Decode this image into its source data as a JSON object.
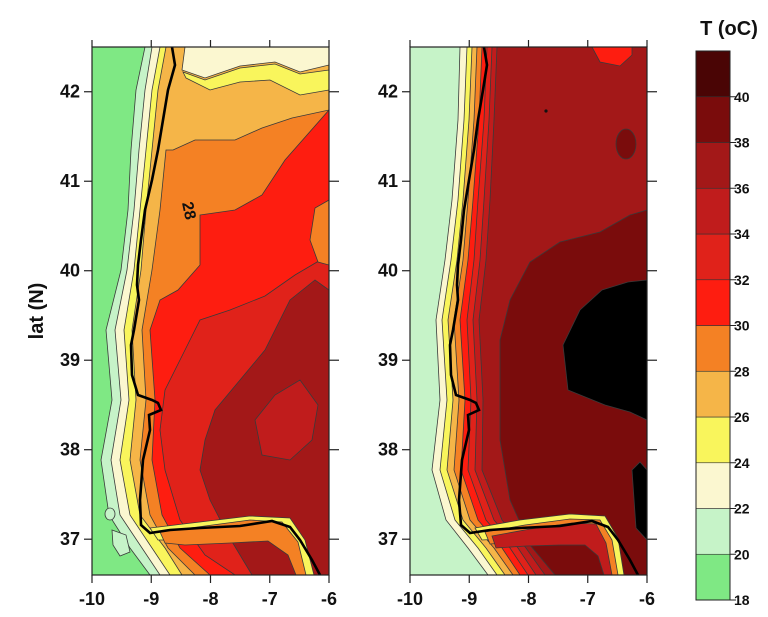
{
  "chart_data": {
    "type": "heatmap",
    "ylabel": "lat (N)",
    "colorbar": {
      "title": "T (oC)",
      "ticks": [
        18,
        20,
        22,
        24,
        26,
        28,
        30,
        32,
        34,
        36,
        38,
        40
      ],
      "range": [
        18,
        42
      ],
      "colors": [
        "#7fe884",
        "#c6f3c8",
        "#fbf7d0",
        "#f9f55c",
        "#f5b548",
        "#f48124",
        "#fe1d10",
        "#e0221a",
        "#c01c1c",
        "#a31818",
        "#7a0c0c",
        "#4a0505",
        "#000000"
      ]
    },
    "panels": [
      {
        "name": "left",
        "xlim": [
          -10,
          -6
        ],
        "ylim": [
          36.6,
          42.5
        ],
        "xticks": [
          -10,
          -9,
          -8,
          -7,
          -6
        ],
        "yticks": [
          37,
          38,
          39,
          40,
          41,
          42
        ],
        "contour_label": "28"
      },
      {
        "name": "right",
        "xlim": [
          -10,
          -6
        ],
        "ylim": [
          36.6,
          42.5
        ],
        "xticks": [
          -10,
          -9,
          -8,
          -7,
          -6
        ],
        "yticks": [
          37,
          38,
          39,
          40,
          41,
          42
        ]
      }
    ]
  }
}
